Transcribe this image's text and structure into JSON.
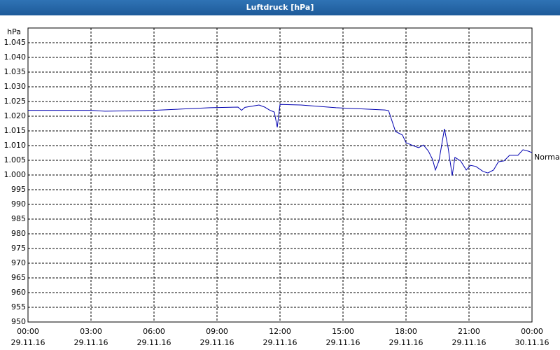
{
  "chart_data": {
    "type": "line",
    "title": "Luftdruck [hPa]",
    "y_label": "hPa",
    "x": [
      0,
      3,
      3.67,
      6,
      8.67,
      10,
      10.17,
      10.33,
      11,
      11.27,
      11.5,
      11.73,
      11.87,
      12,
      13,
      14.67,
      17,
      17.17,
      17.5,
      17.83,
      18,
      18.33,
      18.6,
      18.83,
      19.07,
      19.27,
      19.4,
      19.57,
      19.83,
      20,
      20.2,
      20.33,
      20.6,
      20.87,
      21.07,
      21.33,
      21.67,
      21.9,
      22.17,
      22.4,
      22.67,
      22.93,
      23.33,
      23.57,
      23.83,
      24
    ],
    "series": [
      {
        "name": "Normal",
        "color": "#0000b0",
        "values": [
          1022,
          1022,
          1021.7,
          1022,
          1022.9,
          1023.1,
          1022,
          1023,
          1023.8,
          1023.1,
          1022.1,
          1021.4,
          1016.2,
          1024,
          1023.8,
          1022.9,
          1022.1,
          1021.9,
          1014.8,
          1013.6,
          1011,
          1010,
          1009.3,
          1010.2,
          1008.1,
          1005.2,
          1001.7,
          1004.8,
          1015.7,
          1009.5,
          999.8,
          1006,
          1004.8,
          1001.7,
          1003.3,
          1002.9,
          1001.2,
          1000.7,
          1001.7,
          1004.5,
          1004.8,
          1006.7,
          1006.7,
          1008.6,
          1008.1,
          1007.6
        ]
      }
    ],
    "xlim": [
      0,
      24
    ],
    "xticks": [
      {
        "value": 0,
        "label": "00:00"
      },
      {
        "value": 3,
        "label": "03:00"
      },
      {
        "value": 6,
        "label": "06:00"
      },
      {
        "value": 9,
        "label": "09:00"
      },
      {
        "value": 12,
        "label": "12:00"
      },
      {
        "value": 15,
        "label": "15:00"
      },
      {
        "value": 18,
        "label": "18:00"
      },
      {
        "value": 21,
        "label": "21:00"
      },
      {
        "value": 24,
        "label": "00:00"
      }
    ],
    "xtick_dates": [
      "29.11.16",
      "29.11.16",
      "29.11.16",
      "29.11.16",
      "29.11.16",
      "29.11.16",
      "29.11.16",
      "29.11.16",
      "30.11.16"
    ],
    "ylim": [
      950,
      1050
    ],
    "yticks": [
      950,
      955,
      960,
      965,
      970,
      975,
      980,
      985,
      990,
      995,
      {
        "value": 1000,
        "label": "1.000"
      },
      {
        "value": 1005,
        "label": "1.005"
      },
      {
        "value": 1010,
        "label": "1.010"
      },
      {
        "value": 1015,
        "label": "1.015"
      },
      {
        "value": 1020,
        "label": "1.020"
      },
      {
        "value": 1025,
        "label": "1.025"
      },
      {
        "value": 1030,
        "label": "1.030"
      },
      {
        "value": 1035,
        "label": "1.035"
      },
      {
        "value": 1040,
        "label": "1.040"
      },
      {
        "value": 1045,
        "label": "1.045"
      }
    ],
    "grid": true
  }
}
